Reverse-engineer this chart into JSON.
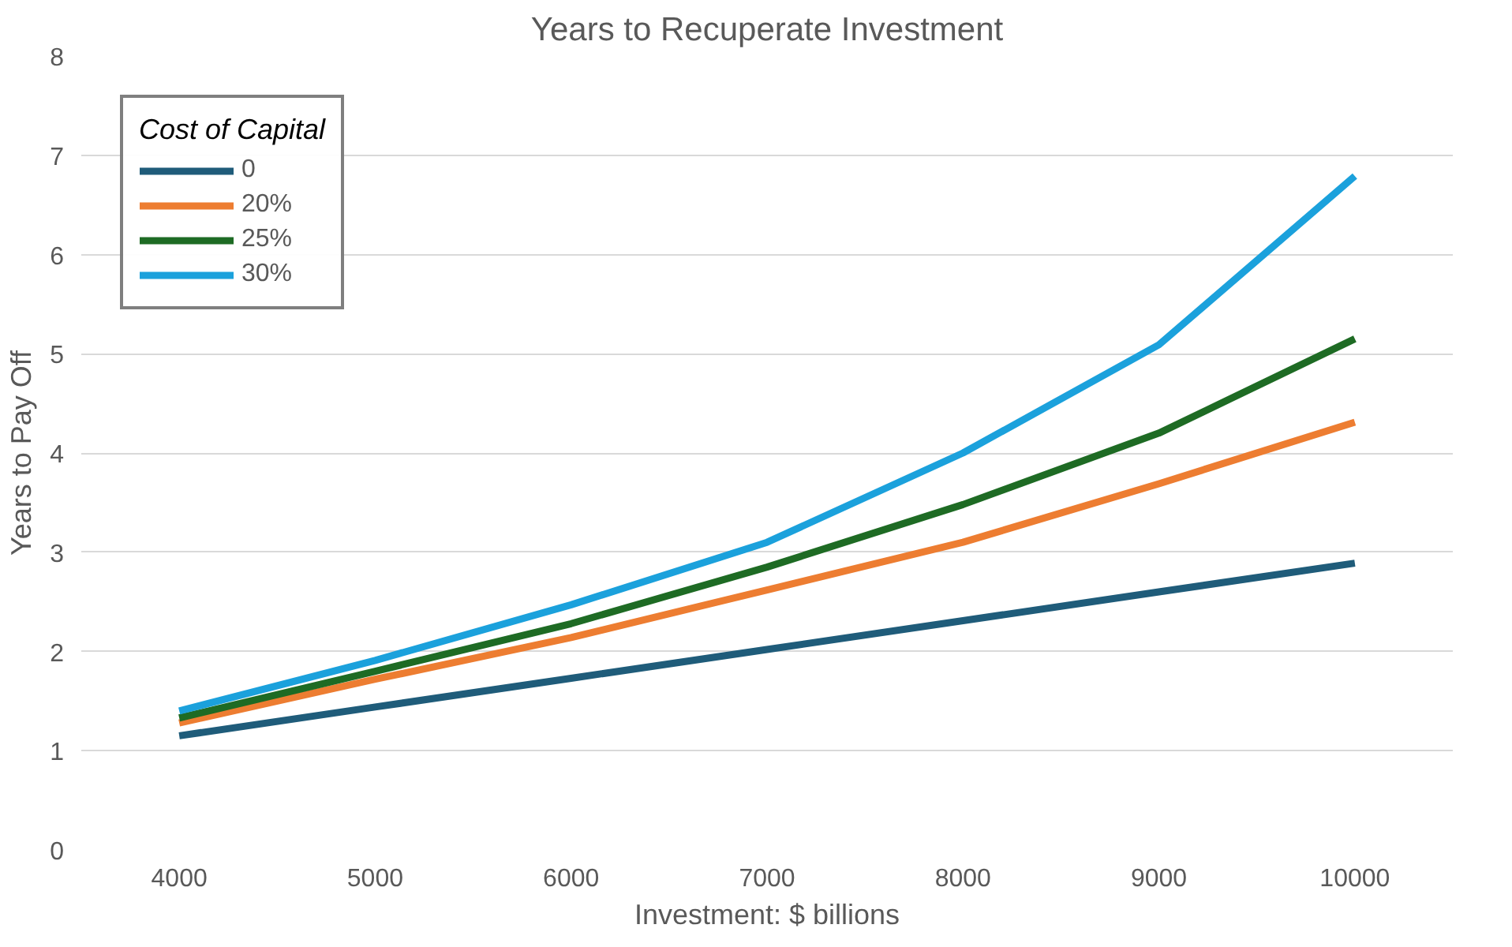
{
  "chart_data": {
    "type": "line",
    "title": "Years to Recuperate Investment",
    "xlabel": "Investment: $ billions",
    "ylabel": "Years to Pay Off",
    "legend_title": "Cost of Capital",
    "categories": [
      "4000",
      "5000",
      "6000",
      "7000",
      "8000",
      "9000",
      "10000"
    ],
    "ylim": [
      0,
      8
    ],
    "yticks": [
      0,
      1,
      2,
      3,
      4,
      5,
      6,
      7,
      8
    ],
    "grid": "y",
    "legend": "top left",
    "line_style": "solid",
    "series": [
      {
        "name": "0",
        "color": "#1f5c7a",
        "values": [
          1.15,
          1.44,
          1.73,
          2.02,
          2.31,
          2.6,
          2.89
        ]
      },
      {
        "name": "20%",
        "color": "#ed7d31",
        "values": [
          1.28,
          1.72,
          2.14,
          2.62,
          3.1,
          3.69,
          4.31
        ]
      },
      {
        "name": "25%",
        "color": "#1e6b24",
        "values": [
          1.33,
          1.8,
          2.28,
          2.85,
          3.48,
          4.2,
          5.15
        ]
      },
      {
        "name": "30%",
        "color": "#1ba1dc",
        "values": [
          1.4,
          1.91,
          2.47,
          3.1,
          4.0,
          5.09,
          6.79
        ]
      }
    ]
  }
}
